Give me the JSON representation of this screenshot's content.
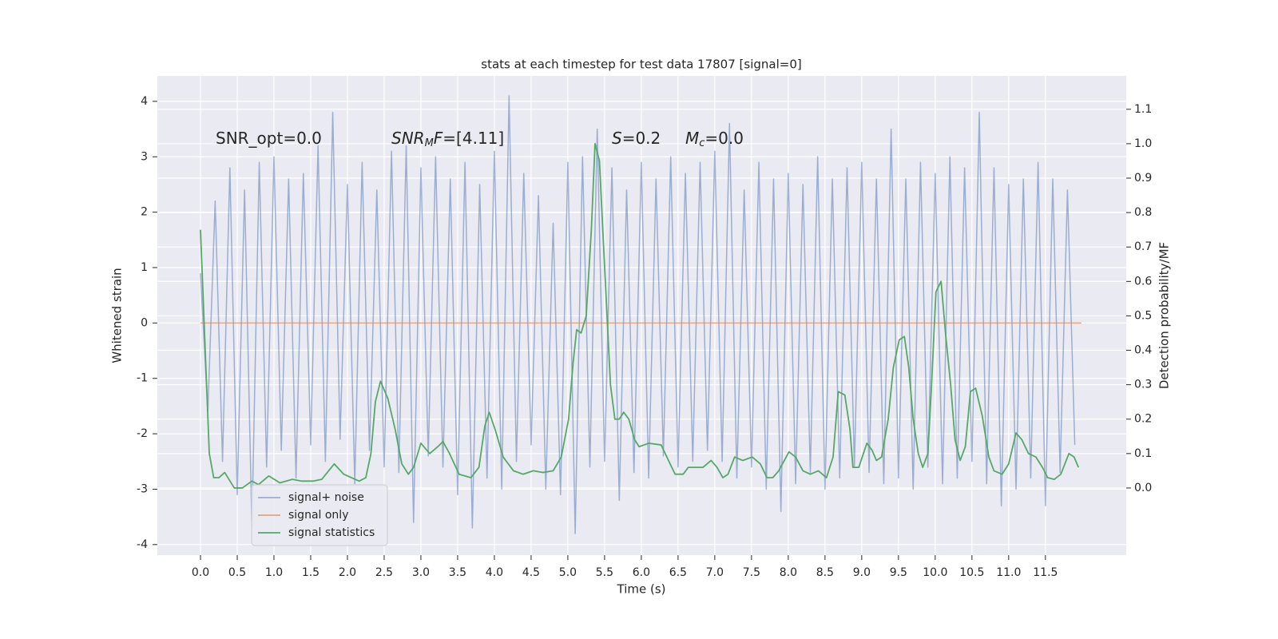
{
  "chart_data": {
    "type": "line",
    "title": "stats at each timestep for test data 17807 [signal=0]",
    "xlabel": "Time (s)",
    "ylabel": "Whitened strain",
    "y2label": "Detection probability/MF",
    "annotations": [
      [
        "SNR_opt=0.0"
      ],
      [
        "SNR",
        "M",
        "F",
        "=[4.11]"
      ],
      [
        "S",
        "=0.2"
      ],
      [
        "M",
        "c",
        "=0.0"
      ]
    ],
    "xlim": [
      -0.587,
      12.6
    ],
    "ylim": [
      -4.19,
      4.46
    ],
    "y2lim": [
      -0.195,
      1.197
    ],
    "xticks": [
      {
        "value": 0,
        "label": "0.0"
      },
      {
        "value": 0.5,
        "label": "0.5"
      },
      {
        "value": 1,
        "label": "1.0"
      },
      {
        "value": 1.5,
        "label": "1.5"
      },
      {
        "value": 2,
        "label": "2.0"
      },
      {
        "value": 2.5,
        "label": "2.5"
      },
      {
        "value": 3,
        "label": "3.0"
      },
      {
        "value": 3.5,
        "label": "3.5"
      },
      {
        "value": 4,
        "label": "4.0"
      },
      {
        "value": 4.5,
        "label": "4.5"
      },
      {
        "value": 5,
        "label": "5.0"
      },
      {
        "value": 5.5,
        "label": "5.5"
      },
      {
        "value": 6,
        "label": "6.0"
      },
      {
        "value": 6.5,
        "label": "6.5"
      },
      {
        "value": 7,
        "label": "7.0"
      },
      {
        "value": 7.5,
        "label": "7.5"
      },
      {
        "value": 8,
        "label": "8.0"
      },
      {
        "value": 8.5,
        "label": "8.5"
      },
      {
        "value": 9,
        "label": "9.0"
      },
      {
        "value": 9.5,
        "label": "9.5"
      },
      {
        "value": 10,
        "label": "10.0"
      },
      {
        "value": 10.5,
        "label": "10.5"
      },
      {
        "value": 11,
        "label": "11.0"
      },
      {
        "value": 11.5,
        "label": "11.5"
      }
    ],
    "yticks": [
      -4,
      -3,
      -2,
      -1,
      0,
      1,
      2,
      3,
      4
    ],
    "y2ticks": [
      {
        "value": 0,
        "label": "0.0"
      },
      {
        "value": 0.1,
        "label": "0.1"
      },
      {
        "value": 0.2,
        "label": "0.2"
      },
      {
        "value": 0.3,
        "label": "0.3"
      },
      {
        "value": 0.4,
        "label": "0.4"
      },
      {
        "value": 0.5,
        "label": "0.5"
      },
      {
        "value": 0.6,
        "label": "0.6"
      },
      {
        "value": 0.7,
        "label": "0.7"
      },
      {
        "value": 0.8,
        "label": "0.8"
      },
      {
        "value": 0.9,
        "label": "0.9"
      },
      {
        "value": 1,
        "label": "1.0"
      },
      {
        "value": 1.1,
        "label": "1.1"
      }
    ],
    "grid": true,
    "legend": "lower left",
    "series": [
      {
        "name": "signal+ noise",
        "color": "#4c72b0",
        "opacity": 0.5,
        "x": [
          0,
          0.1,
          0.2,
          0.3,
          0.4,
          0.5,
          0.6,
          0.7,
          0.8,
          0.9,
          1,
          1.1,
          1.2,
          1.3,
          1.4,
          1.5,
          1.6,
          1.7,
          1.8,
          1.9,
          2,
          2.1,
          2.2,
          2.3,
          2.4,
          2.5,
          2.6,
          2.7,
          2.8,
          2.9,
          3,
          3.1,
          3.2,
          3.3,
          3.4,
          3.5,
          3.6,
          3.7,
          3.8,
          3.9,
          4,
          4.1,
          4.2,
          4.3,
          4.4,
          4.5,
          4.6,
          4.7,
          4.8,
          4.9,
          5,
          5.1,
          5.2,
          5.3,
          5.4,
          5.5,
          5.6,
          5.7,
          5.8,
          5.9,
          6,
          6.1,
          6.2,
          6.3,
          6.4,
          6.5,
          6.6,
          6.7,
          6.8,
          6.9,
          7,
          7.1,
          7.2,
          7.3,
          7.4,
          7.5,
          7.6,
          7.7,
          7.8,
          7.9,
          8,
          8.1,
          8.2,
          8.3,
          8.4,
          8.5,
          8.6,
          8.7,
          8.8,
          8.9,
          9,
          9.1,
          9.2,
          9.3,
          9.4,
          9.5,
          9.6,
          9.7,
          9.8,
          9.9,
          10,
          10.1,
          10.2,
          10.3,
          10.4,
          10.5,
          10.6,
          10.7,
          10.8,
          10.9,
          11,
          11.1,
          11.2,
          11.3,
          11.4,
          11.5,
          11.6,
          11.7,
          11.8,
          11.9
        ],
        "values": [
          0.9,
          -1.6,
          2.2,
          -2.5,
          2.8,
          -3.1,
          2.4,
          -3.7,
          2.9,
          -2.6,
          3.0,
          -2.3,
          2.6,
          -2.8,
          2.7,
          -2.2,
          3.2,
          -2.5,
          3.8,
          -2.1,
          2.5,
          -2.9,
          2.9,
          -2.3,
          2.4,
          -2.6,
          3.1,
          -2.7,
          3.2,
          -3.6,
          2.8,
          -2.4,
          3.0,
          -2.6,
          2.6,
          -3.1,
          2.9,
          -3.7,
          2.5,
          -2.8,
          3.1,
          -3.0,
          4.1,
          -2.5,
          2.7,
          -2.2,
          2.3,
          -3.0,
          1.8,
          -3.1,
          2.9,
          -3.8,
          3.0,
          -2.6,
          3.5,
          -2.5,
          2.8,
          -3.2,
          2.4,
          -2.7,
          2.9,
          -2.8,
          2.6,
          -2.4,
          3.0,
          -2.6,
          2.7,
          -2.5,
          2.9,
          -2.3,
          3.1,
          -2.5,
          3.6,
          -2.8,
          2.4,
          -2.6,
          2.9,
          -3.0,
          2.6,
          -3.4,
          2.7,
          -2.9,
          2.5,
          -2.7,
          3.0,
          -3.0,
          2.6,
          -2.8,
          2.8,
          -2.6,
          2.9,
          -2.7,
          2.6,
          -2.9,
          3.5,
          -2.8,
          2.6,
          -3.0,
          2.9,
          -2.6,
          2.7,
          -2.9,
          3.0,
          -2.8,
          2.8,
          -2.5,
          3.8,
          -2.9,
          2.8,
          -3.3,
          2.5,
          -3.0,
          2.6,
          -2.8,
          2.9,
          -3.3,
          2.6,
          -2.7,
          2.4,
          -2.2
        ]
      },
      {
        "name": "signal only",
        "color": "#dd8452",
        "opacity": 0.7,
        "x": [
          0,
          11.99
        ],
        "values": [
          0,
          0
        ]
      },
      {
        "name": "signal statistics",
        "color": "#55a868",
        "opacity": 1,
        "axis": "y2",
        "x": [
          0,
          0.12,
          0.18,
          0.25,
          0.33,
          0.46,
          0.57,
          0.7,
          0.79,
          0.93,
          1.08,
          1.25,
          1.38,
          1.53,
          1.65,
          1.82,
          1.95,
          2.16,
          2.25,
          2.32,
          2.38,
          2.45,
          2.55,
          2.65,
          2.74,
          2.83,
          2.9,
          3.0,
          3.12,
          3.23,
          3.3,
          3.39,
          3.52,
          3.68,
          3.79,
          3.87,
          3.93,
          4.01,
          4.12,
          4.26,
          4.39,
          4.53,
          4.66,
          4.8,
          4.91,
          5.01,
          5.07,
          5.12,
          5.18,
          5.25,
          5.32,
          5.37,
          5.43,
          5.51,
          5.58,
          5.64,
          5.7,
          5.76,
          5.83,
          5.91,
          5.97,
          6.1,
          6.27,
          6.37,
          6.46,
          6.57,
          6.64,
          6.75,
          6.84,
          6.95,
          7.03,
          7.11,
          7.18,
          7.27,
          7.38,
          7.51,
          7.62,
          7.71,
          7.79,
          7.87,
          8.01,
          8.1,
          8.2,
          8.3,
          8.41,
          8.52,
          8.61,
          8.68,
          8.77,
          8.84,
          8.88,
          8.96,
          9.07,
          9.14,
          9.2,
          9.27,
          9.36,
          9.43,
          9.51,
          9.58,
          9.64,
          9.7,
          9.77,
          9.83,
          9.9,
          9.95,
          10.01,
          10.08,
          10.14,
          10.21,
          10.27,
          10.34,
          10.41,
          10.48,
          10.55,
          10.64,
          10.73,
          10.8,
          10.91,
          11.0,
          11.1,
          11.18,
          11.27,
          11.37,
          11.46,
          11.53,
          11.62,
          11.71,
          11.82,
          11.89,
          11.95
        ],
        "values": [
          0.75,
          0.1,
          0.03,
          0.03,
          0.045,
          0.0,
          0.0,
          0.02,
          0.01,
          0.035,
          0.015,
          0.025,
          0.02,
          0.02,
          0.025,
          0.07,
          0.04,
          0.02,
          0.03,
          0.1,
          0.25,
          0.31,
          0.26,
          0.17,
          0.07,
          0.04,
          0.06,
          0.13,
          0.1,
          0.12,
          0.135,
          0.1,
          0.04,
          0.03,
          0.06,
          0.18,
          0.22,
          0.17,
          0.09,
          0.05,
          0.04,
          0.05,
          0.045,
          0.05,
          0.09,
          0.2,
          0.36,
          0.46,
          0.45,
          0.5,
          0.75,
          1.0,
          0.95,
          0.6,
          0.3,
          0.2,
          0.2,
          0.22,
          0.2,
          0.14,
          0.12,
          0.13,
          0.125,
          0.08,
          0.04,
          0.04,
          0.06,
          0.06,
          0.06,
          0.08,
          0.06,
          0.03,
          0.04,
          0.09,
          0.08,
          0.09,
          0.07,
          0.03,
          0.03,
          0.05,
          0.105,
          0.09,
          0.05,
          0.04,
          0.05,
          0.03,
          0.09,
          0.28,
          0.27,
          0.17,
          0.06,
          0.06,
          0.13,
          0.11,
          0.08,
          0.09,
          0.2,
          0.35,
          0.43,
          0.44,
          0.35,
          0.2,
          0.1,
          0.06,
          0.1,
          0.3,
          0.57,
          0.6,
          0.45,
          0.3,
          0.14,
          0.08,
          0.12,
          0.28,
          0.29,
          0.21,
          0.09,
          0.05,
          0.04,
          0.07,
          0.16,
          0.14,
          0.1,
          0.09,
          0.06,
          0.03,
          0.025,
          0.04,
          0.1,
          0.09,
          0.06
        ]
      }
    ]
  }
}
